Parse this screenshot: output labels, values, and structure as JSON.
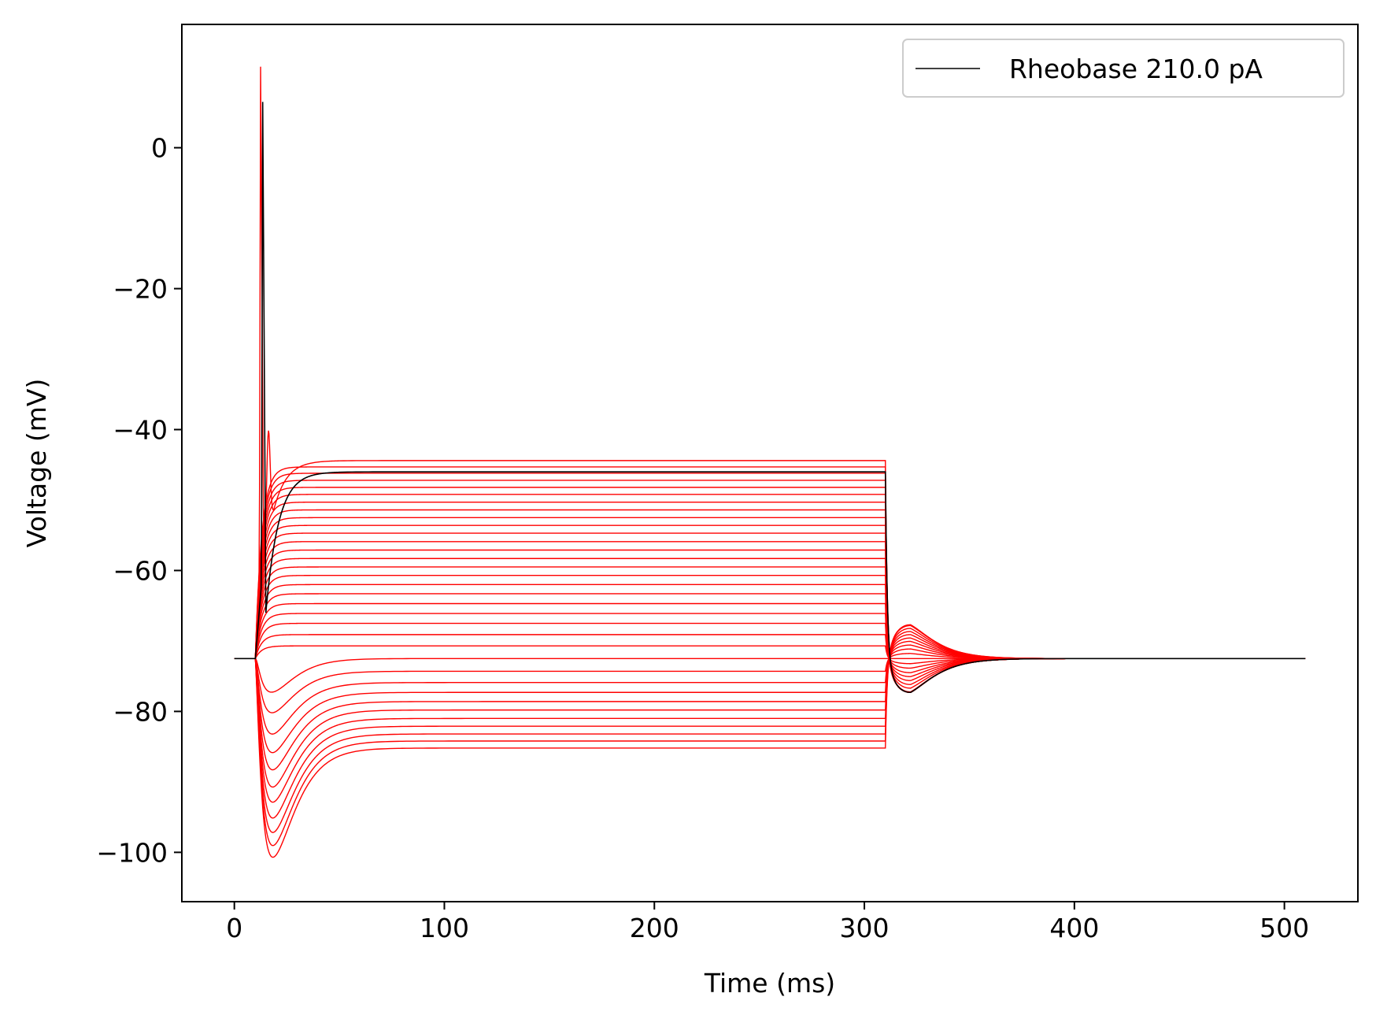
{
  "chart_data": {
    "type": "line",
    "title": "",
    "xlabel": "Time (ms)",
    "ylabel": "Voltage (mV)",
    "xlim": [
      -25,
      535
    ],
    "ylim": [
      -107,
      17.5
    ],
    "x_ticks": [
      0,
      100,
      200,
      300,
      400,
      500
    ],
    "y_ticks": [
      0,
      -20,
      -40,
      -60,
      -80,
      -100
    ],
    "x_tick_labels": [
      "0",
      "100",
      "200",
      "300",
      "400",
      "500"
    ],
    "y_tick_labels": [
      "0",
      "−20",
      "−40",
      "−60",
      "−80",
      "−100"
    ],
    "grid": false,
    "legend": {
      "position": "top-right",
      "entries": [
        {
          "label": "Rheobase 210.0 pA",
          "color": "#000000"
        }
      ]
    },
    "stimulus": {
      "onset_ms": 10,
      "offset_ms": 310,
      "end_ms": 510
    },
    "resting_potential_mV": -72.5,
    "colors": {
      "subthreshold": "#ff0000",
      "rheobase": "#000000"
    },
    "subthreshold_steady_state_mV": [
      -85.2,
      -84.2,
      -83.2,
      -82.1,
      -81.0,
      -79.8,
      -78.6,
      -77.3,
      -75.9,
      -74.3,
      -72.5,
      -70.7,
      -69.1,
      -67.5,
      -66.1,
      -64.7,
      -63.3,
      -62.0,
      -60.7,
      -59.5,
      -58.3,
      -57.1,
      -55.9,
      -54.7,
      -53.6,
      -52.5,
      -51.4,
      -50.3,
      -49.2,
      -48.2,
      -47.2,
      -46.2,
      -45.3,
      -44.4
    ],
    "hyperpolarizing_sag_minimum_mV": [
      -101.3,
      -99.6,
      -97.7,
      -95.6,
      -93.3,
      -91.1,
      -88.6,
      -86.1,
      -83.4,
      -80.3,
      -77.3
    ],
    "spike_peaks": [
      {
        "series": "subthreshold",
        "time_ms": 12.5,
        "peak_mV": 11.5,
        "steady_mV": -44.4
      },
      {
        "series": "rheobase",
        "time_ms": 13.5,
        "peak_mV": 6.5,
        "steady_mV": -46.0
      }
    ],
    "rebound": {
      "max_depolarized_mV": -65.5,
      "min_hyperpolarized_mV": -77.5,
      "time_ms": 325
    }
  }
}
